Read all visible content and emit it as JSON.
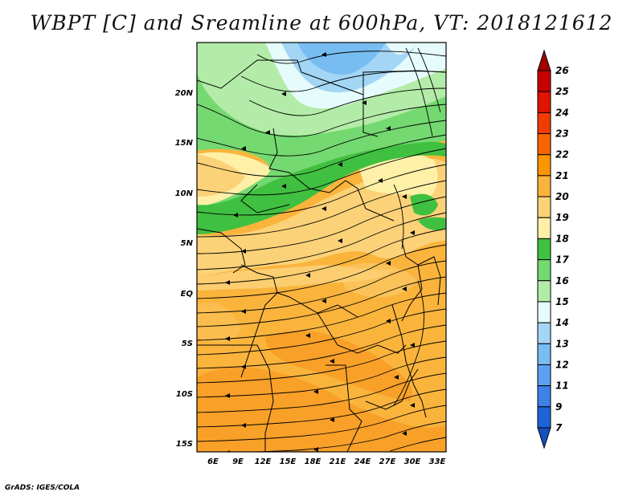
{
  "title": "WBPT [C] and Sreamline at 600hPa, VT: 2018121612",
  "credit": "GrADS: IGES/COLA",
  "map": {
    "lon_range": [
      4,
      34
    ],
    "lat_range": [
      -16,
      25
    ],
    "lon_ticks": [
      "6E",
      "9E",
      "12E",
      "15E",
      "18E",
      "21E",
      "24E",
      "27E",
      "30E",
      "33E"
    ],
    "lat_ticks": [
      "20N",
      "15N",
      "10N",
      "5N",
      "EQ",
      "5S",
      "10S",
      "15S"
    ],
    "field": "Wet-bulb potential temperature (shaded) with 600 hPa streamlines",
    "dominant_flow": "east-to-west"
  },
  "colorbar": {
    "levels": [
      "26",
      "25",
      "24",
      "23",
      "22",
      "21",
      "20",
      "19",
      "18",
      "17",
      "16",
      "15",
      "14",
      "13",
      "12",
      "11",
      "9",
      "7"
    ],
    "colors": [
      "#a50000",
      "#c80000",
      "#e11400",
      "#f03c00",
      "#f86400",
      "#fa9600",
      "#fab43c",
      "#fcd278",
      "#fff0a8",
      "#40c040",
      "#74d970",
      "#b3eca8",
      "#e6fcfc",
      "#a3d6f5",
      "#78bdf2",
      "#5ca0f0",
      "#3e82e8",
      "#1e64d8",
      "#1450c0"
    ]
  }
}
